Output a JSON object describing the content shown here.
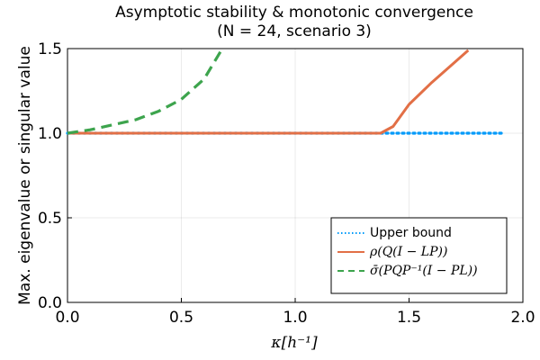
{
  "chart_data": {
    "type": "line",
    "title": "Asymptotic stability & monotonic convergence",
    "subtitle": "(N = 24, scenario 3)",
    "xlabel": "κ[h⁻¹]",
    "ylabel": "Max. eigenvalue or singular value",
    "xlim": [
      0,
      2.0
    ],
    "ylim": [
      0,
      1.5
    ],
    "x_ticks": [
      0.0,
      0.5,
      1.0,
      1.5,
      2.0
    ],
    "x_tick_labels": [
      "0.0",
      "0.5",
      "1.0",
      "1.5",
      "2.0"
    ],
    "y_ticks": [
      0.0,
      0.5,
      1.0,
      1.5
    ],
    "y_tick_labels": [
      "0.0",
      "0.5",
      "1.0",
      "1.5"
    ],
    "grid": true,
    "legend_position": "bottom-right",
    "series": [
      {
        "name": "Upper bound",
        "color": "#009AFA",
        "style": "dotted",
        "x": [
          0.0,
          1.92
        ],
        "y": [
          1.0,
          1.0
        ]
      },
      {
        "name": "ρ(Q(I − LP))",
        "color": "#E26F46",
        "style": "solid",
        "x": [
          0.0,
          0.5,
          1.0,
          1.375,
          1.43,
          1.5,
          1.6,
          1.76
        ],
        "y": [
          1.0,
          1.0,
          1.0,
          1.0,
          1.04,
          1.17,
          1.3,
          1.49
        ]
      },
      {
        "name": "σ̄(PQP⁻¹(I − PL))",
        "color": "#3DA44D",
        "style": "dashed",
        "x": [
          0.0,
          0.1,
          0.2,
          0.3,
          0.4,
          0.5,
          0.6,
          0.68
        ],
        "y": [
          1.0,
          1.02,
          1.05,
          1.08,
          1.13,
          1.2,
          1.32,
          1.5
        ]
      }
    ]
  }
}
